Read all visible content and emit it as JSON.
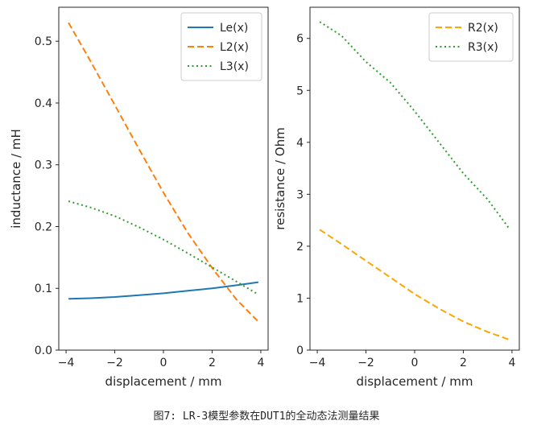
{
  "caption": "图7: LR-3模型参数在DUT1的全动态法测量结果",
  "chart_data": [
    {
      "type": "line",
      "xlabel": "displacement / mm",
      "ylabel": "inductance / mH",
      "xlim": [
        -4.3,
        4.3
      ],
      "ylim": [
        0.0,
        0.555
      ],
      "xticks": [
        -4,
        -2,
        0,
        2,
        4
      ],
      "yticks": [
        0.0,
        0.1,
        0.2,
        0.3,
        0.4,
        0.5
      ],
      "ytick_labels": [
        "0.0",
        "0.1",
        "0.2",
        "0.3",
        "0.4",
        "0.5"
      ],
      "legend_position": "top-right",
      "series": [
        {
          "name": "Le(x)",
          "color": "#1f77b4",
          "style": "solid",
          "x": [
            -3.9,
            -3,
            -2,
            -1,
            0,
            1,
            2,
            3,
            3.9
          ],
          "y": [
            0.083,
            0.084,
            0.086,
            0.089,
            0.092,
            0.096,
            0.1,
            0.105,
            0.11
          ]
        },
        {
          "name": "L2(x)",
          "color": "#ff7f0e",
          "style": "dashed",
          "x": [
            -3.9,
            -3,
            -2,
            -1,
            0,
            1,
            2,
            3,
            3.9
          ],
          "y": [
            0.53,
            0.468,
            0.397,
            0.325,
            0.255,
            0.19,
            0.133,
            0.082,
            0.046
          ]
        },
        {
          "name": "L3(x)",
          "color": "#2ca02c",
          "style": "dotted",
          "x": [
            -3.9,
            -3,
            -2,
            -1,
            0,
            1,
            2,
            3,
            3.9
          ],
          "y": [
            0.241,
            0.231,
            0.217,
            0.199,
            0.179,
            0.157,
            0.134,
            0.111,
            0.09
          ]
        }
      ]
    },
    {
      "type": "line",
      "xlabel": "displacement / mm",
      "ylabel": "resistance / Ohm",
      "xlim": [
        -4.3,
        4.3
      ],
      "ylim": [
        0.0,
        6.6
      ],
      "xticks": [
        -4,
        -2,
        0,
        2,
        4
      ],
      "yticks": [
        0,
        1,
        2,
        3,
        4,
        5,
        6
      ],
      "ytick_labels": [
        "0",
        "1",
        "2",
        "3",
        "4",
        "5",
        "6"
      ],
      "legend_position": "top-right",
      "series": [
        {
          "name": "R2(x)",
          "color": "#ffa500",
          "style": "dashed",
          "x": [
            -3.9,
            -3,
            -2,
            -1,
            0,
            1,
            2,
            3,
            3.9
          ],
          "y": [
            2.32,
            2.04,
            1.72,
            1.4,
            1.08,
            0.8,
            0.55,
            0.35,
            0.2
          ]
        },
        {
          "name": "R3(x)",
          "color": "#2ca02c",
          "style": "dotted",
          "x": [
            -3.9,
            -3,
            -2,
            -1,
            0,
            1,
            2,
            3,
            3.9
          ],
          "y": [
            6.32,
            6.05,
            5.55,
            5.15,
            4.6,
            4.0,
            3.4,
            2.9,
            2.33
          ]
        }
      ]
    }
  ]
}
